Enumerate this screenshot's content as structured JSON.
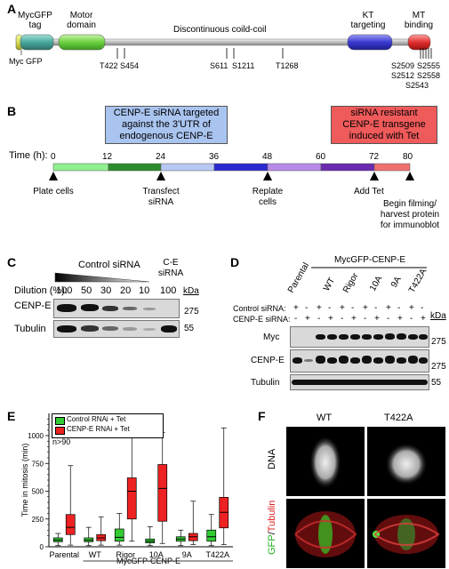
{
  "panel_a": {
    "letter": "A",
    "domain_labels": {
      "mycgfp_tag": "MycGFP\ntag",
      "motor_domain": "Motor\ndomain",
      "coiled_coil": "Discontinuous coild-coil",
      "kt_targeting": "KT\ntargeting",
      "mt_binding": "MT\nbinding",
      "myc_gfp": "Myc GFP"
    },
    "sites": {
      "t422": "T422",
      "s454": "S454",
      "s611": "S611",
      "s1211": "S1211",
      "t1268": "T1268",
      "s2509": "S2509",
      "s2512": "S2512",
      "s2543": "S2543",
      "s2555": "S2555",
      "s2558": "S2558"
    },
    "colors": {
      "myc": "#d8e05a",
      "gfp": "#5fb3a8",
      "motor": "#7ed957",
      "coil": "#c8c8c8",
      "kt": "#3f3fd0",
      "mt": "#e03030"
    }
  },
  "panel_b": {
    "letter": "B",
    "box_left": "CENP-E siRNA targeted\nagainst the 3'UTR of\nendogenous CENP-E",
    "box_right": "siRNA resistant\nCENP-E transgene\ninduced with Tet",
    "time_label": "Time (h):",
    "ticks": [
      "0",
      "12",
      "24",
      "36",
      "48",
      "60",
      "72",
      "80"
    ],
    "events": {
      "plate": "Plate cells",
      "transfect": "Transfect\nsiRNA",
      "replate": "Replate\ncells",
      "add_tet": "Add Tet",
      "begin": "Begin filming/\nharvest protein\nfor immunoblot"
    },
    "colors": {
      "box_left": "#a9c4ef",
      "box_right": "#ef5a5a"
    }
  },
  "panel_c": {
    "letter": "C",
    "control_label": "Control siRNA",
    "ce_label": "C-E\nsiRNA",
    "dilution_label": "Dilution (%):",
    "dilutions": [
      "100",
      "50",
      "30",
      "20",
      "10",
      "100"
    ],
    "kda": "kDa",
    "rows": [
      {
        "name": "CENP-E",
        "marker": "275"
      },
      {
        "name": "Tubulin",
        "marker": "55"
      }
    ]
  },
  "panel_d": {
    "letter": "D",
    "group_label": "MycGFP-CENP-E",
    "lanes": [
      "Parental",
      "WT",
      "Rigor",
      "10A",
      "9A",
      "T422A"
    ],
    "control_label": "Control siRNA:",
    "cenpe_label": "CENP-E siRNA:",
    "control_signs": [
      "+",
      "-",
      "+",
      "-",
      "+",
      "-",
      "+",
      "-",
      "+",
      "-",
      "+",
      "-"
    ],
    "cenpe_signs": [
      "-",
      "+",
      "-",
      "+",
      "-",
      "+",
      "-",
      "+",
      "-",
      "+",
      "-",
      "+"
    ],
    "kda": "kDa",
    "rows": [
      {
        "name": "Myc",
        "marker": "275"
      },
      {
        "name": "CENP-E",
        "marker": "275"
      },
      {
        "name": "Tubulin",
        "marker": "55"
      }
    ]
  },
  "panel_e": {
    "letter": "E",
    "ylabel": "Time in mitosis (min)",
    "annotation": "n>90",
    "legend": [
      "Control RNAi + Tet",
      "CENP-E RNAi + Tet"
    ],
    "group_label": "MycGFP-CENP-E",
    "colors": {
      "control": "#33cc33",
      "cenpe": "#ee2222"
    }
  },
  "panel_f": {
    "letter": "F",
    "col_labels": [
      "WT",
      "T422A"
    ],
    "row1_label": "DNA",
    "row2_label_gfp": "GFP",
    "row2_label_sep": "/",
    "row2_label_tub": "Tubulin"
  },
  "chart_data": {
    "type": "box",
    "title": "",
    "xlabel": "",
    "ylabel": "Time in mitosis (min)",
    "ylim": [
      0,
      1200
    ],
    "yticks": [
      0,
      250,
      500,
      750,
      1000
    ],
    "yticks_minor": [
      100,
      150,
      200,
      300,
      350,
      400,
      450,
      550,
      600,
      650,
      700,
      800,
      850,
      900,
      950,
      1050,
      1100,
      1150
    ],
    "categories": [
      "Parental",
      "WT",
      "Rigor",
      "10A",
      "9A",
      "T422A"
    ],
    "series": [
      {
        "name": "Control RNAi + Tet",
        "boxes": [
          {
            "min": 10,
            "q1": 45,
            "median": 60,
            "q3": 80,
            "max": 120
          },
          {
            "min": 10,
            "q1": 45,
            "median": 60,
            "q3": 80,
            "max": 175
          },
          {
            "min": 15,
            "q1": 50,
            "median": 85,
            "q3": 160,
            "max": 300
          },
          {
            "min": 10,
            "q1": 35,
            "median": 50,
            "q3": 70,
            "max": 180
          },
          {
            "min": 10,
            "q1": 50,
            "median": 70,
            "q3": 90,
            "max": 150
          },
          {
            "min": 10,
            "q1": 50,
            "median": 90,
            "q3": 150,
            "max": 290
          }
        ]
      },
      {
        "name": "CENP-E RNAi + Tet",
        "boxes": [
          {
            "min": 15,
            "q1": 110,
            "median": 175,
            "q3": 290,
            "max": 730
          },
          {
            "min": 15,
            "q1": 55,
            "median": 80,
            "q3": 110,
            "max": 270
          },
          {
            "min": 50,
            "q1": 250,
            "median": 500,
            "q3": 620,
            "max": 990
          },
          {
            "min": 30,
            "q1": 230,
            "median": 525,
            "q3": 740,
            "max": 1030
          },
          {
            "min": 20,
            "q1": 55,
            "median": 90,
            "q3": 120,
            "max": 410
          },
          {
            "min": 20,
            "q1": 170,
            "median": 310,
            "q3": 445,
            "max": 1070
          }
        ]
      }
    ]
  }
}
